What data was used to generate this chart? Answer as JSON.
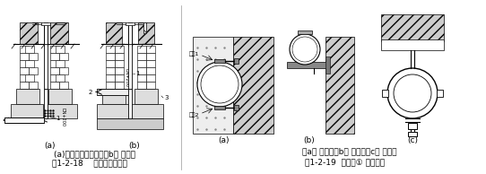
{
  "bg_color": "#ffffff",
  "fig_width": 5.42,
  "fig_height": 1.94,
  "dpi": 100,
  "label_left_line1": "(a)从浅基础下通过；（b） 穿基础",
  "label_left_line2": "图1-2-18    引入管进入建筑",
  "label_right_line1": "（a） 管卡；（b） 托架；（c） 吹环表",
  "label_right_line2": "图1-2-19  支、吐① 暖通南社",
  "hatch_color": "#555555",
  "line_color": "#000000",
  "gray_fill": "#cccccc",
  "light_gray": "#e8e8e8",
  "brick_color": "#999999",
  "ka_ban_1": "卡扨1",
  "ka_ban_2": "卡扨2"
}
